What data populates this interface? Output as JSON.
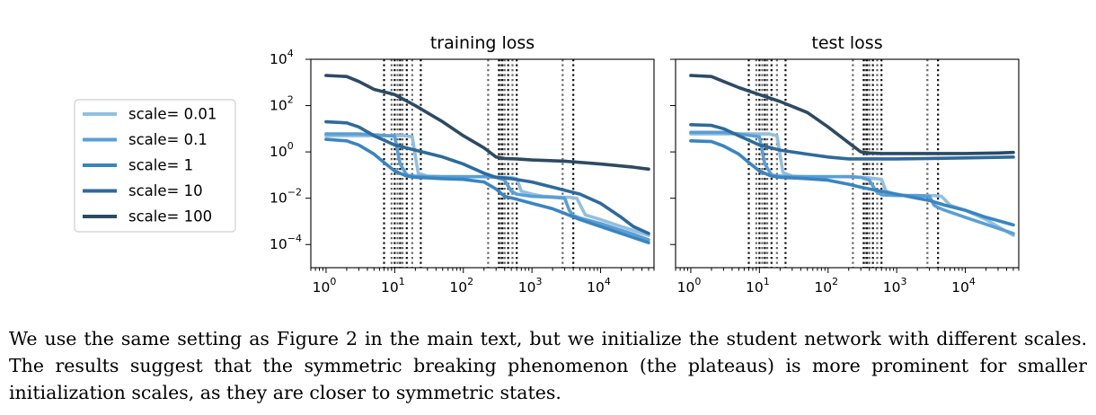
{
  "chart_data": [
    {
      "type": "line",
      "title": "training loss",
      "xscale": "log",
      "yscale": "log",
      "xlim": [
        0.6,
        60000
      ],
      "ylim": [
        1e-05,
        10000
      ],
      "xticks": [
        1,
        10,
        100,
        1000,
        10000
      ],
      "yticks": [
        0.0001,
        0.01,
        1,
        100,
        10000
      ],
      "xtick_labels": [
        [
          "10",
          "0"
        ],
        [
          "10",
          "1"
        ],
        [
          "10",
          "2"
        ],
        [
          "10",
          "3"
        ],
        [
          "10",
          "4"
        ]
      ],
      "ytick_labels": [
        [
          "10",
          "−4"
        ],
        [
          "10",
          "−2"
        ],
        [
          "10",
          "0"
        ],
        [
          "10",
          "2"
        ],
        [
          "10",
          "4"
        ]
      ],
      "vlines": [
        7,
        9,
        10,
        11,
        12,
        13,
        15,
        18,
        24,
        230,
        330,
        350,
        370,
        400,
        450,
        520,
        600,
        2800,
        4000
      ],
      "series": [
        {
          "name": "scale= 0.01",
          "color": "#93bfe0",
          "x": [
            1,
            3,
            6,
            10,
            14,
            18,
            22,
            30,
            50,
            100,
            200,
            300,
            400,
            500,
            600,
            700,
            1000,
            1500,
            2500,
            3500,
            4500,
            6000,
            10000,
            20000,
            50000
          ],
          "y": [
            5,
            5,
            5,
            5,
            5,
            4.5,
            0.12,
            0.09,
            0.085,
            0.085,
            0.085,
            0.082,
            0.08,
            0.078,
            0.07,
            0.02,
            0.015,
            0.012,
            0.011,
            0.011,
            0.01,
            0.0019,
            0.0012,
            0.0006,
            0.00025
          ]
        },
        {
          "name": "scale= 0.1",
          "color": "#5a9fd4",
          "x": [
            1,
            3,
            5,
            8,
            10,
            12,
            15,
            20,
            30,
            100,
            200,
            300,
            400,
            500,
            600,
            1000,
            2000,
            3000,
            3500,
            4000,
            5000,
            10000,
            30000,
            50000
          ],
          "y": [
            6,
            6,
            5.5,
            5,
            4.8,
            0.3,
            0.1,
            0.09,
            0.085,
            0.085,
            0.085,
            0.08,
            0.06,
            0.02,
            0.015,
            0.012,
            0.011,
            0.01,
            0.003,
            0.0018,
            0.0014,
            0.0008,
            0.00028,
            0.00016
          ]
        },
        {
          "name": "scale= 1",
          "color": "#3a85c0",
          "x": [
            1,
            2,
            3,
            5,
            7,
            10,
            15,
            20,
            30,
            50,
            100,
            200,
            300,
            400,
            600,
            1000,
            2000,
            3000,
            5000,
            10000,
            20000,
            50000
          ],
          "y": [
            3.5,
            3,
            2,
            0.8,
            0.35,
            0.15,
            0.09,
            0.08,
            0.075,
            0.07,
            0.065,
            0.05,
            0.025,
            0.012,
            0.009,
            0.006,
            0.0035,
            0.0022,
            0.0012,
            0.0006,
            0.0003,
            0.00012
          ]
        },
        {
          "name": "scale= 10",
          "color": "#2e6a9c",
          "x": [
            1,
            2,
            3,
            5,
            10,
            20,
            50,
            100,
            200,
            300,
            400,
            500,
            1000,
            2000,
            5000,
            10000,
            20000,
            30000,
            50000
          ],
          "y": [
            20,
            18,
            12,
            5,
            2,
            1.2,
            0.6,
            0.3,
            0.12,
            0.08,
            0.075,
            0.07,
            0.05,
            0.03,
            0.015,
            0.006,
            0.0015,
            0.0006,
            0.0003
          ]
        },
        {
          "name": "scale= 100",
          "color": "#2d4a63",
          "x": [
            1,
            2,
            3,
            5,
            10,
            20,
            50,
            100,
            200,
            300,
            400,
            600,
            1000,
            3000,
            10000,
            30000,
            50000
          ],
          "y": [
            2000,
            1800,
            1100,
            500,
            300,
            100,
            20,
            5,
            1.5,
            0.6,
            0.52,
            0.5,
            0.45,
            0.4,
            0.3,
            0.22,
            0.18
          ]
        }
      ]
    },
    {
      "type": "line",
      "title": "test loss",
      "xscale": "log",
      "yscale": "log",
      "xlim": [
        0.6,
        60000
      ],
      "ylim": [
        1e-05,
        10000
      ],
      "xticks": [
        1,
        10,
        100,
        1000,
        10000
      ],
      "yticks": [
        0.0001,
        0.01,
        1,
        100,
        10000
      ],
      "xtick_labels": [
        [
          "10",
          "0"
        ],
        [
          "10",
          "1"
        ],
        [
          "10",
          "2"
        ],
        [
          "10",
          "3"
        ],
        [
          "10",
          "4"
        ]
      ],
      "ytick_labels": [],
      "vlines": [
        7,
        9,
        10,
        11,
        12,
        13,
        15,
        18,
        24,
        230,
        330,
        350,
        370,
        400,
        450,
        520,
        600,
        2800,
        4000
      ],
      "series": [
        {
          "name": "scale= 0.01",
          "color": "#93bfe0",
          "x": [
            1,
            3,
            6,
            10,
            14,
            18,
            22,
            30,
            50,
            100,
            200,
            300,
            400,
            500,
            600,
            700,
            1000,
            1500,
            2500,
            3500,
            4500,
            6000,
            10000,
            20000,
            50000
          ],
          "y": [
            6,
            6,
            6,
            6,
            6,
            5,
            0.13,
            0.09,
            0.085,
            0.085,
            0.085,
            0.08,
            0.075,
            0.07,
            0.065,
            0.02,
            0.014,
            0.013,
            0.013,
            0.013,
            0.012,
            0.005,
            0.003,
            0.0012,
            0.00025
          ]
        },
        {
          "name": "scale= 0.1",
          "color": "#5a9fd4",
          "x": [
            1,
            3,
            5,
            8,
            10,
            12,
            15,
            20,
            30,
            100,
            200,
            300,
            400,
            500,
            600,
            1000,
            2000,
            3000,
            3500,
            4000,
            5000,
            10000,
            30000,
            50000
          ],
          "y": [
            7,
            7,
            6,
            5,
            4.5,
            0.3,
            0.1,
            0.09,
            0.085,
            0.085,
            0.085,
            0.08,
            0.06,
            0.02,
            0.014,
            0.013,
            0.013,
            0.012,
            0.005,
            0.004,
            0.003,
            0.0015,
            0.0005,
            0.0003
          ]
        },
        {
          "name": "scale= 1",
          "color": "#3a85c0",
          "x": [
            1,
            2,
            3,
            5,
            7,
            10,
            15,
            20,
            30,
            50,
            100,
            200,
            300,
            400,
            600,
            1000,
            2000,
            3000,
            5000,
            10000,
            20000,
            50000
          ],
          "y": [
            3,
            2.8,
            1.8,
            0.8,
            0.35,
            0.15,
            0.09,
            0.08,
            0.075,
            0.07,
            0.06,
            0.04,
            0.03,
            0.025,
            0.02,
            0.015,
            0.01,
            0.008,
            0.005,
            0.003,
            0.0015,
            0.0007
          ]
        },
        {
          "name": "scale= 10",
          "color": "#2e6a9c",
          "x": [
            1,
            2,
            3,
            5,
            10,
            20,
            50,
            100,
            200,
            300,
            500,
            1000,
            3000,
            10000,
            50000
          ],
          "y": [
            15,
            14,
            10,
            5,
            2,
            1.2,
            0.8,
            0.6,
            0.5,
            0.5,
            0.5,
            0.5,
            0.52,
            0.55,
            0.6
          ]
        },
        {
          "name": "scale= 100",
          "color": "#2d4a63",
          "x": [
            1,
            2,
            3,
            5,
            10,
            20,
            50,
            100,
            200,
            300,
            400,
            600,
            1000,
            3000,
            10000,
            30000,
            50000
          ],
          "y": [
            2000,
            1800,
            1100,
            600,
            300,
            150,
            50,
            12,
            2.5,
            1,
            0.9,
            0.85,
            0.85,
            0.85,
            0.85,
            0.9,
            0.95
          ]
        }
      ]
    }
  ],
  "caption": "We use the same setting as Figure 2 in the main text, but we initialize the student network with different scales. The results suggest that the symmetric breaking phenomenon (the plateaus) is more prominent for smaller initialization scales, as they are closer to symmetric states."
}
